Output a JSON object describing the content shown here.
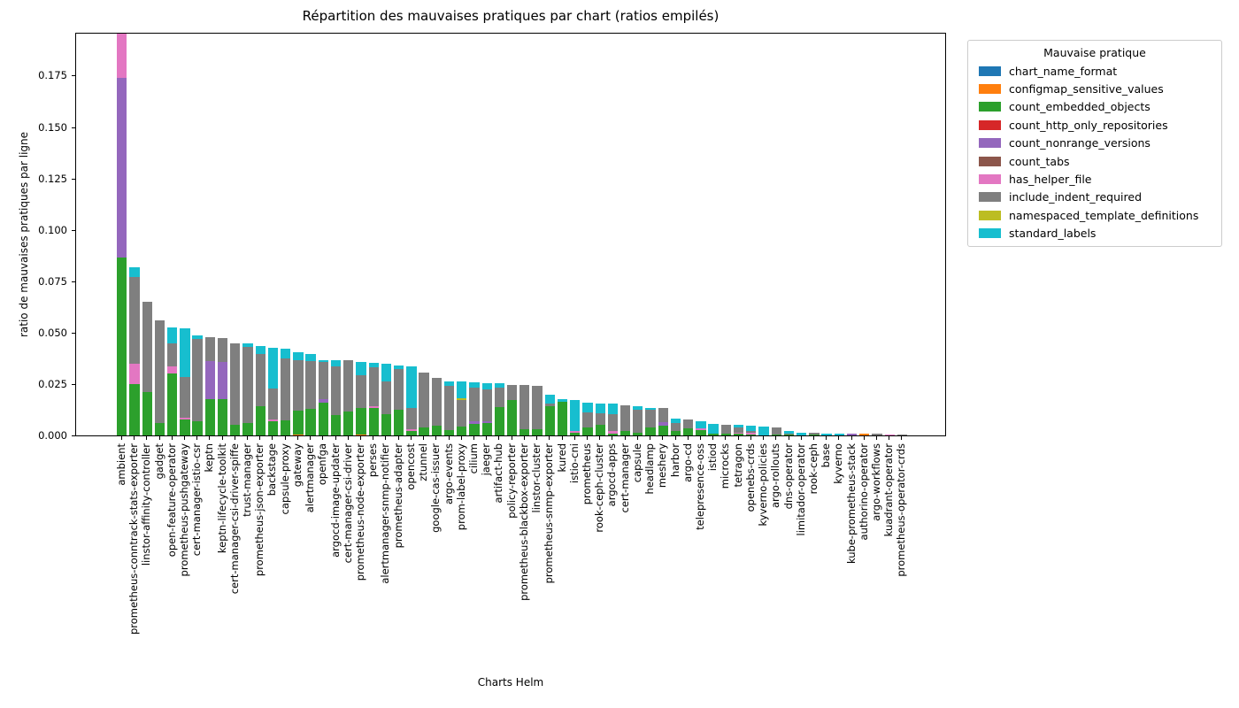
{
  "title": "Répartition des mauvaises pratiques par chart (ratios empilés)",
  "xlabel": "Charts Helm",
  "ylabel": "ratio de mauvaises pratiques par ligne",
  "legend_title": "Mauvaise pratique",
  "chart_data": {
    "type": "bar",
    "stacked": true,
    "grid": false,
    "legend_position": "outside upper right",
    "ylim": [
      0,
      0.1954
    ],
    "yticks": [
      0,
      0.025,
      0.05,
      0.075,
      0.1,
      0.125,
      0.15,
      0.175
    ],
    "ytick_labels": [
      "0.000",
      "0.025",
      "0.050",
      "0.075",
      "0.100",
      "0.125",
      "0.150",
      "0.175"
    ],
    "categories": [
      "ambient",
      "prometheus-conntrack-stats-exporter",
      "linstor-affinity-controller",
      "gadget",
      "open-feature-operator",
      "prometheus-pushgateway",
      "cert-manager-istio-csr",
      "keptn",
      "keptn-lifecycle-toolkit",
      "cert-manager-csi-driver-spiffe",
      "trust-manager",
      "prometheus-json-exporter",
      "backstage",
      "capsule-proxy",
      "gateway",
      "alertmanager",
      "openfga",
      "argocd-image-updater",
      "cert-manager-csi-driver",
      "prometheus-node-exporter",
      "perses",
      "alertmanager-snmp-notifier",
      "prometheus-adapter",
      "opencost",
      "ztunnel",
      "google-cas-issuer",
      "argo-events",
      "prom-label-proxy",
      "cilium",
      "jaeger",
      "artifact-hub",
      "policy-reporter",
      "prometheus-blackbox-exporter",
      "linstor-cluster",
      "prometheus-snmp-exporter",
      "kured",
      "istio-cni",
      "prometheus",
      "rook-ceph-cluster",
      "argocd-apps",
      "cert-manager",
      "capsule",
      "headlamp",
      "meshery",
      "harbor",
      "argo-cd",
      "telepresence-oss",
      "istiod",
      "microcks",
      "tetragon",
      "openebs-crds",
      "kyverno-policies",
      "argo-rollouts",
      "dns-operator",
      "limitador-operator",
      "rook-ceph",
      "base",
      "kyverno",
      "kube-prometheus-stack",
      "authorino-operator",
      "argo-workflows",
      "kuadrant-operator",
      "prometheus-operator-crds"
    ],
    "series": [
      {
        "name": "chart_name_format",
        "color": "#1f77b4",
        "values": [
          0,
          0,
          0,
          0,
          0,
          0,
          0,
          0,
          0,
          0,
          0,
          0,
          0,
          0,
          0,
          0,
          0,
          0,
          0,
          0,
          0,
          0,
          0,
          0,
          0,
          0,
          0,
          0,
          0,
          0,
          0,
          0,
          0,
          0,
          0,
          0,
          0,
          0,
          0,
          0,
          0,
          0,
          0,
          0,
          0,
          0,
          0,
          0,
          0,
          0,
          0,
          0,
          0,
          0,
          0,
          0,
          0,
          0,
          0,
          0,
          0,
          0,
          0
        ]
      },
      {
        "name": "configmap_sensitive_values",
        "color": "#ff7f0e",
        "values": [
          0,
          0,
          0,
          0,
          0,
          0,
          0,
          0,
          0,
          0,
          0,
          0,
          0,
          0,
          0.0005,
          0,
          0,
          0,
          0,
          0.0003,
          0,
          0,
          0,
          0,
          0,
          0,
          0,
          0,
          0,
          0,
          0,
          0,
          0,
          0,
          0,
          0,
          0,
          0,
          0,
          0,
          0,
          0,
          0,
          0,
          0,
          0,
          0,
          0,
          0,
          0,
          0,
          0,
          0,
          0,
          0,
          0,
          0,
          0,
          0,
          0.0007,
          0,
          0,
          0
        ]
      },
      {
        "name": "count_embedded_objects",
        "color": "#2ca02c",
        "values": [
          0.0865,
          0.025,
          0.021,
          0.006,
          0.03,
          0.0076,
          0.0069,
          0.0178,
          0.0178,
          0.0053,
          0.006,
          0.0143,
          0.0069,
          0.0074,
          0.0115,
          0.013,
          0.016,
          0.01,
          0.0118,
          0.0132,
          0.0132,
          0.0104,
          0.0126,
          0.0021,
          0.004,
          0.0046,
          0.0028,
          0.0043,
          0.0057,
          0.006,
          0.0136,
          0.0171,
          0.003,
          0.0029,
          0.0143,
          0.0164,
          0.0013,
          0.0039,
          0.005,
          0.001,
          0.0021,
          0.0014,
          0.0039,
          0.0047,
          0.0021,
          0.0033,
          0.0024,
          0.001,
          0.0007,
          0.0008,
          0.0005,
          0,
          0.0003,
          0.0003,
          0,
          0.0003,
          0,
          0,
          0,
          0,
          0,
          0,
          0
        ]
      },
      {
        "name": "count_http_only_repositories",
        "color": "#d62728",
        "values": [
          0,
          0,
          0,
          0,
          0,
          0,
          0,
          0,
          0,
          0,
          0,
          0,
          0,
          0,
          0,
          0,
          0,
          0,
          0,
          0,
          0,
          0,
          0,
          0,
          0,
          0,
          0,
          0,
          0,
          0,
          0,
          0,
          0,
          0,
          0,
          0,
          0,
          0,
          0,
          0,
          0,
          0,
          0,
          0,
          0,
          0,
          0,
          0,
          0,
          0,
          0,
          0,
          0,
          0,
          0,
          0,
          0,
          0,
          0,
          0,
          0,
          0,
          0
        ]
      },
      {
        "name": "count_nonrange_versions",
        "color": "#9467bd",
        "values": [
          0.0875,
          0,
          0,
          0,
          0,
          0,
          0,
          0.0184,
          0.018,
          0,
          0,
          0,
          0,
          0,
          0,
          0,
          0.0018,
          0,
          0,
          0,
          0,
          0,
          0,
          0,
          0,
          0,
          0,
          0,
          0.0014,
          0.001,
          0,
          0,
          0,
          0,
          0,
          0,
          0,
          0,
          0,
          0,
          0,
          0,
          0,
          0.0017,
          0,
          0,
          0,
          0,
          0,
          0,
          0,
          0,
          0,
          0,
          0,
          0,
          0,
          0,
          0.0008,
          0,
          0,
          0,
          0
        ]
      },
      {
        "name": "count_tabs",
        "color": "#8c564b",
        "values": [
          0,
          0,
          0,
          0,
          0,
          0,
          0,
          0,
          0,
          0,
          0,
          0,
          0,
          0,
          0,
          0,
          0,
          0,
          0,
          0,
          0,
          0,
          0,
          0,
          0,
          0,
          0,
          0,
          0,
          0,
          0,
          0,
          0,
          0,
          0,
          0,
          0,
          0,
          0,
          0,
          0,
          0,
          0,
          0,
          0,
          0,
          0,
          0,
          0,
          0,
          0,
          0,
          0,
          0,
          0,
          0,
          0,
          0,
          0,
          0,
          0,
          0,
          0
        ]
      },
      {
        "name": "has_helper_file",
        "color": "#e377c2",
        "values": [
          0.0215,
          0.01,
          0,
          0,
          0.0035,
          0.0012,
          0,
          0,
          0,
          0,
          0,
          0,
          0.0009,
          0,
          0,
          0,
          0,
          0,
          0,
          0,
          0.0009,
          0,
          0,
          0.001,
          0,
          0,
          0,
          0,
          0,
          0,
          0,
          0,
          0,
          0,
          0,
          0,
          0.0008,
          0,
          0,
          0.0011,
          0,
          0,
          0,
          0,
          0,
          0,
          0.0012,
          0,
          0,
          0.0005,
          0.0008,
          0,
          0,
          0,
          0,
          0,
          0,
          0,
          0,
          0,
          0,
          0.0006,
          0
        ]
      },
      {
        "name": "include_indent_required",
        "color": "#7f7f7f",
        "values": [
          0,
          0.042,
          0.044,
          0.05,
          0.0112,
          0.0196,
          0.04,
          0.0116,
          0.0117,
          0.0395,
          0.0371,
          0.0252,
          0.0152,
          0.0299,
          0.0247,
          0.0233,
          0.0179,
          0.0236,
          0.0246,
          0.0158,
          0.0192,
          0.016,
          0.0195,
          0.0102,
          0.0267,
          0.0233,
          0.0215,
          0.0129,
          0.0162,
          0.0155,
          0.0095,
          0.0075,
          0.0215,
          0.0214,
          0.001,
          0,
          0,
          0.0071,
          0.0057,
          0.0083,
          0.0126,
          0.011,
          0.0086,
          0.0069,
          0.004,
          0.0043,
          0,
          0,
          0.0046,
          0.0025,
          0.001,
          0,
          0.0035,
          0.0007,
          0,
          0.001,
          0,
          0,
          0,
          0,
          0.0007,
          0,
          0.0002
        ]
      },
      {
        "name": "namespaced_template_definitions",
        "color": "#bcbd22",
        "values": [
          0,
          0,
          0,
          0,
          0,
          0,
          0,
          0,
          0,
          0,
          0,
          0,
          0,
          0,
          0,
          0,
          0,
          0,
          0,
          0,
          0,
          0,
          0,
          0,
          0,
          0,
          0,
          0.0009,
          0,
          0,
          0,
          0,
          0,
          0,
          0,
          0,
          0,
          0,
          0,
          0,
          0,
          0,
          0,
          0,
          0,
          0,
          0,
          0,
          0,
          0,
          0,
          0,
          0,
          0,
          0,
          0,
          0,
          0,
          0,
          0,
          0,
          0,
          0
        ]
      },
      {
        "name": "standard_labels",
        "color": "#17becf",
        "values": [
          0,
          0.005,
          0,
          0,
          0.0078,
          0.0238,
          0.0017,
          0,
          0,
          0,
          0.0015,
          0.004,
          0.0198,
          0.0051,
          0.0036,
          0.0035,
          0.001,
          0.003,
          0,
          0.0064,
          0.0019,
          0.0085,
          0.0021,
          0.0203,
          0,
          0,
          0.0021,
          0.0081,
          0.0024,
          0.003,
          0.0023,
          0,
          0,
          0,
          0.0043,
          0.0012,
          0.015,
          0.0051,
          0.005,
          0.0049,
          0,
          0.0019,
          0.001,
          0,
          0.002,
          0,
          0.0035,
          0.0048,
          0,
          0.0012,
          0.0025,
          0.0045,
          0,
          0.001,
          0.0015,
          0,
          0.001,
          0.001,
          0,
          0,
          0,
          0,
          0
        ]
      }
    ]
  }
}
